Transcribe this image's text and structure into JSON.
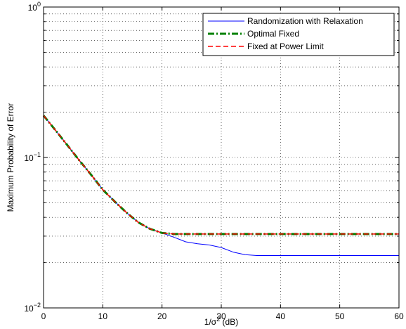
{
  "chart_data": {
    "type": "line",
    "title": "",
    "xlabel": "1/σ² (dB)",
    "xlabel_parts": {
      "prefix": "1/σ",
      "superscript": "2",
      "suffix": " (dB)"
    },
    "ylabel": "Maximum Probability of Error",
    "xlim": [
      0,
      60
    ],
    "ylim": [
      0.01,
      1
    ],
    "yscale": "log",
    "grid": true,
    "legend_position": "top-right",
    "x_ticks": [
      {
        "value": 0,
        "label": "0"
      },
      {
        "value": 10,
        "label": "10"
      },
      {
        "value": 20,
        "label": "20"
      },
      {
        "value": 30,
        "label": "30"
      },
      {
        "value": 40,
        "label": "40"
      },
      {
        "value": 50,
        "label": "50"
      },
      {
        "value": 60,
        "label": "60"
      }
    ],
    "y_ticks": [
      {
        "value": 0.01,
        "base": "10",
        "exponent": "−2"
      },
      {
        "value": 0.1,
        "base": "10",
        "exponent": "−1"
      },
      {
        "value": 1,
        "base": "10",
        "exponent": "0"
      }
    ],
    "series": [
      {
        "name": "Randomization with Relaxation",
        "color": "#0000ff",
        "style": "solid",
        "x": [
          0,
          2,
          4,
          6,
          8,
          10,
          12,
          14,
          16,
          18,
          20,
          22,
          24,
          26,
          28,
          30,
          32,
          34,
          36,
          38,
          40,
          45,
          50,
          55,
          60
        ],
        "y": [
          0.19,
          0.152,
          0.121,
          0.096,
          0.077,
          0.061,
          0.051,
          0.043,
          0.037,
          0.0335,
          0.0315,
          0.0295,
          0.0275,
          0.0267,
          0.0262,
          0.0252,
          0.0235,
          0.0226,
          0.0223,
          0.0223,
          0.0223,
          0.0223,
          0.0223,
          0.0223,
          0.0223
        ]
      },
      {
        "name": "Optimal Fixed",
        "color": "#008000",
        "style": "dashdot",
        "x": [
          0,
          2,
          4,
          6,
          8,
          10,
          12,
          14,
          16,
          18,
          20,
          22,
          24,
          30,
          40,
          50,
          60
        ],
        "y": [
          0.19,
          0.152,
          0.121,
          0.096,
          0.077,
          0.061,
          0.051,
          0.043,
          0.037,
          0.0335,
          0.0315,
          0.031,
          0.031,
          0.031,
          0.031,
          0.031,
          0.031
        ]
      },
      {
        "name": "Fixed at Power Limit",
        "color": "#ff0000",
        "style": "dashed",
        "x": [
          0,
          2,
          4,
          6,
          8,
          10,
          12,
          14,
          16,
          18,
          20,
          22,
          24,
          30,
          40,
          50,
          60
        ],
        "y": [
          0.19,
          0.152,
          0.121,
          0.096,
          0.077,
          0.061,
          0.051,
          0.043,
          0.037,
          0.0335,
          0.0315,
          0.031,
          0.031,
          0.031,
          0.031,
          0.031,
          0.031
        ]
      }
    ]
  }
}
